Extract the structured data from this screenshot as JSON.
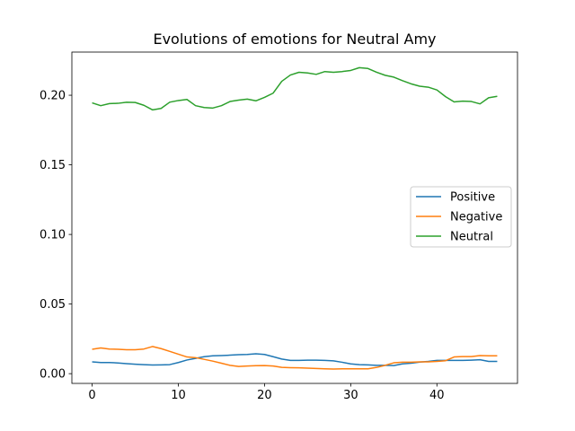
{
  "chart_data": {
    "type": "line",
    "title": "Evolutions of emotions for Neutral Amy",
    "xlabel": "",
    "ylabel": "",
    "xlim": [
      -2.35,
      49.35
    ],
    "ylim": [
      -0.007,
      0.231
    ],
    "xticks": [
      0,
      10,
      20,
      30,
      40
    ],
    "yticks": [
      0.0,
      0.05,
      0.1,
      0.15,
      0.2
    ],
    "ytick_labels": [
      "0.00",
      "0.05",
      "0.10",
      "0.15",
      "0.20"
    ],
    "grid": false,
    "legend_position": "center-right",
    "x": [
      0,
      1,
      2,
      3,
      4,
      5,
      6,
      7,
      8,
      9,
      10,
      11,
      12,
      13,
      14,
      15,
      16,
      17,
      18,
      19,
      20,
      21,
      22,
      23,
      24,
      25,
      26,
      27,
      28,
      29,
      30,
      31,
      32,
      33,
      34,
      35,
      36,
      37,
      38,
      39,
      40,
      41,
      42,
      43,
      44,
      45,
      46,
      47
    ],
    "series": [
      {
        "name": "Positive",
        "color": "#1f77b4",
        "values": [
          0.0085,
          0.008,
          0.008,
          0.0077,
          0.0072,
          0.0068,
          0.0065,
          0.0062,
          0.0063,
          0.0065,
          0.008,
          0.0098,
          0.011,
          0.0122,
          0.0128,
          0.013,
          0.0133,
          0.0136,
          0.0138,
          0.0143,
          0.0138,
          0.0122,
          0.0105,
          0.0095,
          0.0095,
          0.0097,
          0.0097,
          0.0095,
          0.0092,
          0.0082,
          0.007,
          0.0065,
          0.0063,
          0.006,
          0.006,
          0.0058,
          0.007,
          0.0075,
          0.0083,
          0.0088,
          0.0095,
          0.0095,
          0.0095,
          0.0095,
          0.0097,
          0.01,
          0.0088,
          0.0088
        ]
      },
      {
        "name": "Negative",
        "color": "#ff7f0e",
        "values": [
          0.0175,
          0.0185,
          0.0177,
          0.0175,
          0.0172,
          0.0172,
          0.0177,
          0.0195,
          0.018,
          0.016,
          0.014,
          0.012,
          0.0115,
          0.0103,
          0.009,
          0.0075,
          0.006,
          0.0052,
          0.0055,
          0.0057,
          0.0058,
          0.0055,
          0.0045,
          0.0043,
          0.0042,
          0.004,
          0.0037,
          0.0035,
          0.0033,
          0.0035,
          0.0035,
          0.0035,
          0.0035,
          0.0045,
          0.006,
          0.0078,
          0.0082,
          0.0082,
          0.0085,
          0.0085,
          0.0088,
          0.0093,
          0.012,
          0.0123,
          0.0123,
          0.013,
          0.0128,
          0.0128
        ]
      },
      {
        "name": "Neutral",
        "color": "#2ca02c",
        "values": [
          0.1945,
          0.1925,
          0.194,
          0.1942,
          0.195,
          0.1948,
          0.1928,
          0.1895,
          0.1905,
          0.195,
          0.1962,
          0.197,
          0.1925,
          0.1912,
          0.1908,
          0.1925,
          0.1955,
          0.1965,
          0.1972,
          0.196,
          0.1985,
          0.2015,
          0.21,
          0.2145,
          0.2165,
          0.216,
          0.215,
          0.217,
          0.2165,
          0.217,
          0.2178,
          0.2198,
          0.2192,
          0.2165,
          0.2143,
          0.213,
          0.2105,
          0.2082,
          0.2065,
          0.2058,
          0.2038,
          0.199,
          0.1952,
          0.1958,
          0.1955,
          0.1938,
          0.1982,
          0.1992
        ]
      }
    ]
  }
}
